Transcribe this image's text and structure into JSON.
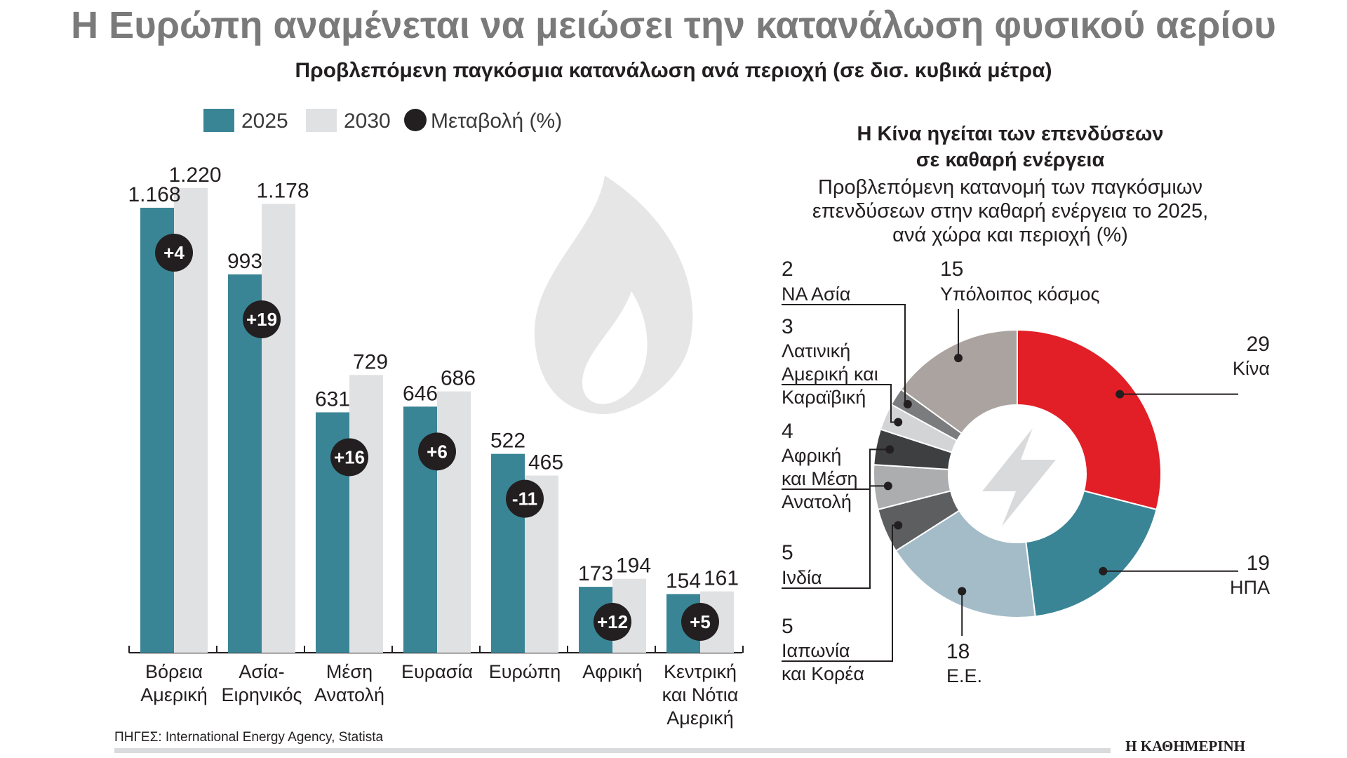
{
  "title": "Η Ευρώπη αναμένεται να μειώσει την κατανάλωση φυσικού αερίου",
  "subtitle": "Προβλεπόμενη παγκόσμια κατανάλωση ανά περιοχή (σε δισ. κυβικά μέτρα)",
  "legend": {
    "s2025": "2025",
    "s2030": "2030",
    "change": "Μεταβολή (%)"
  },
  "chart_data": [
    {
      "type": "bar",
      "title": "Προβλεπόμενη παγκόσμια κατανάλωση ανά περιοχή (σε δισ. κυβικά μέτρα)",
      "unit": "δισ. κυβικά μέτρα",
      "categories": [
        [
          "Βόρεια",
          "Αμερική"
        ],
        [
          "Ασία-",
          "Ειρηνικός"
        ],
        [
          "Μέση",
          "Ανατολή"
        ],
        [
          "Ευρασία"
        ],
        [
          "Ευρώπη"
        ],
        [
          "Αφρική"
        ],
        [
          "Κεντρική",
          "και Νότια",
          "Αμερική"
        ]
      ],
      "series": [
        {
          "name": "2025",
          "values": [
            1168,
            993,
            631,
            646,
            522,
            173,
            154
          ],
          "labels": [
            "1.168",
            "993",
            "631",
            "646",
            "522",
            "173",
            "154"
          ],
          "color": "#3a8595"
        },
        {
          "name": "2030",
          "values": [
            1220,
            1178,
            729,
            686,
            465,
            194,
            161
          ],
          "labels": [
            "1.220",
            "1.178",
            "729",
            "686",
            "465",
            "194",
            "161"
          ],
          "color": "#e0e1e3"
        }
      ],
      "change": [
        "+4",
        "+19",
        "+16",
        "+6",
        "-11",
        "+12",
        "+5"
      ],
      "ylim": [
        0,
        1300
      ]
    },
    {
      "type": "pie",
      "title": [
        "Η Κίνα ηγείται των επενδύσεων",
        "σε καθαρή ενέργεια"
      ],
      "subtitle": [
        "Προβλεπόμενη κατανομή των παγκόσμιων",
        "επενδύσεων στην καθαρή ενέργεια το 2025,",
        "ανά χώρα και περιοχή (%)"
      ],
      "slices": [
        {
          "label": [
            "Κίνα"
          ],
          "value": 29,
          "color": "#e21f26"
        },
        {
          "label": [
            "ΗΠΑ"
          ],
          "value": 19,
          "color": "#3a8595"
        },
        {
          "label": [
            "Ε.Ε."
          ],
          "value": 18,
          "color": "#a4bcc8"
        },
        {
          "label": [
            "Ιαπωνία",
            "και Κορέα"
          ],
          "value": 5,
          "color": "#5d5e60"
        },
        {
          "label": [
            "Ινδία"
          ],
          "value": 5,
          "color": "#acadaf"
        },
        {
          "label": [
            "Αφρική",
            "και Μέση",
            "Ανατολή"
          ],
          "value": 4,
          "color": "#3e3f41"
        },
        {
          "label": [
            "Λατινική",
            "Αμερική και",
            "Καραϊβική"
          ],
          "value": 3,
          "color": "#d3d4d6"
        },
        {
          "label": [
            "ΝΑ Ασία"
          ],
          "value": 2,
          "color": "#7b7c7e"
        },
        {
          "label": [
            "Υπόλοιπος κόσμος"
          ],
          "value": 15,
          "color": "#aaa39f"
        }
      ]
    }
  ],
  "source": "ΠΗΓΕΣ: International Energy Agency, Statista",
  "brand": "Η ΚΑΘΗΜΕΡΙΝΗ",
  "icons": {
    "watermark": "flame-icon",
    "center": "lightning-icon"
  }
}
